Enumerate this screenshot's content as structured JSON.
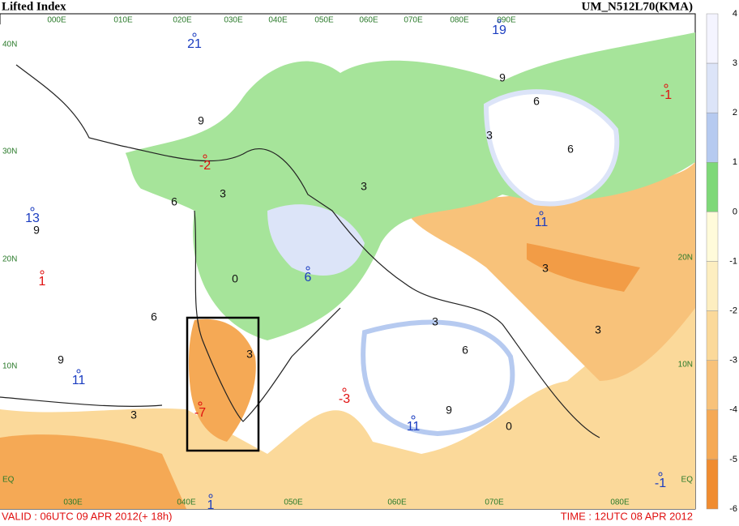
{
  "header": {
    "title": "Lifted Index",
    "source": "UM_N512L70(KMA)"
  },
  "footer": {
    "valid": "VALID : 06UTC 09 APR 2012(+ 18h)",
    "time": "TIME : 12UTC 08 APR 2012"
  },
  "colorbar": {
    "levels": [
      4,
      3,
      2,
      1,
      0,
      -1,
      -2,
      -3,
      -4,
      -5,
      -6
    ],
    "colors": [
      "#f4f4ff",
      "#dce4f8",
      "#b6caf0",
      "#7ed878",
      "#fffbda",
      "#fdeec0",
      "#fbd99a",
      "#f8c27a",
      "#f5a955",
      "#f08c30"
    ]
  },
  "map": {
    "lat_labels_left": [
      "40N",
      "30N",
      "20N",
      "10N",
      "EQ"
    ],
    "lat_labels_right": [
      "20N",
      "10N",
      "EQ"
    ],
    "lon_labels_top": [
      "000E",
      "010E",
      "020E",
      "030E",
      "040E",
      "050E",
      "060E",
      "070E",
      "080E",
      "090E"
    ],
    "lon_labels_bottom": [
      "030E",
      "040E",
      "050E",
      "060E",
      "070E",
      "080E"
    ],
    "centers": [
      {
        "label": "21",
        "color": "#1a3cc0"
      },
      {
        "label": "19",
        "color": "#1a3cc0"
      },
      {
        "label": "13",
        "color": "#1a3cc0"
      },
      {
        "label": "11",
        "color": "#1a3cc0"
      },
      {
        "label": "11",
        "color": "#1a3cc0"
      },
      {
        "label": "11",
        "color": "#1a3cc0"
      },
      {
        "label": "6",
        "color": "#1a3cc0"
      },
      {
        "label": "-1",
        "color": "#1a3cc0"
      },
      {
        "label": "1",
        "color": "#1a3cc0"
      },
      {
        "label": "-2",
        "color": "#e01010"
      },
      {
        "label": "-1",
        "color": "#e01010"
      },
      {
        "label": "1",
        "color": "#e01010"
      },
      {
        "label": "-3",
        "color": "#e01010"
      },
      {
        "label": "-7",
        "color": "#e01010"
      }
    ],
    "contour_labels": [
      "9",
      "6",
      "3",
      "0",
      "6",
      "9",
      "3",
      "3",
      "3",
      "6",
      "9",
      "0",
      "3",
      "3",
      "3",
      "6",
      "6",
      "9",
      "3",
      "9"
    ]
  }
}
